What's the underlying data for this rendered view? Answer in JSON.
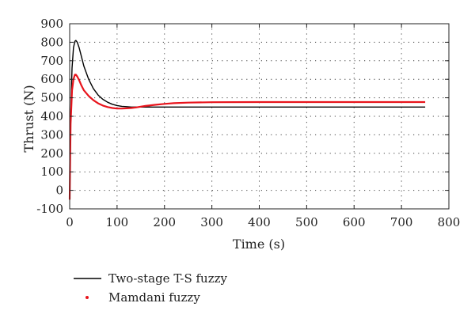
{
  "chart_data": {
    "type": "line",
    "title": "",
    "xlabel": "Time (s)",
    "ylabel": "Thrust (N)",
    "xlim": [
      0,
      800
    ],
    "ylim": [
      -100,
      900
    ],
    "xticks": [
      0,
      100,
      200,
      300,
      400,
      500,
      600,
      700,
      800
    ],
    "yticks": [
      -100,
      0,
      100,
      200,
      300,
      400,
      500,
      600,
      700,
      800,
      900
    ],
    "grid": "dotted",
    "legend_placement": "bottom-left, below plot",
    "series": [
      {
        "name": "Two-stage T-S fuzzy",
        "color": "#000000",
        "x": [
          0,
          2,
          5,
          8,
          11,
          13,
          16,
          20,
          25,
          30,
          40,
          50,
          60,
          70,
          80,
          90,
          100,
          110,
          120,
          130,
          140,
          150,
          160,
          180,
          200,
          250,
          300,
          400,
          500,
          600,
          700,
          750
        ],
        "y": [
          -50,
          400,
          660,
          770,
          805,
          810,
          800,
          770,
          720,
          670,
          600,
          550,
          515,
          492,
          476,
          465,
          458,
          454,
          452,
          450,
          450,
          450,
          450,
          450,
          450,
          450,
          450,
          450,
          450,
          450,
          450,
          450
        ]
      },
      {
        "name": "Mamdani fuzzy",
        "color": "#e8141c",
        "x": [
          0,
          2,
          5,
          8,
          11,
          13,
          16,
          20,
          25,
          30,
          40,
          50,
          60,
          70,
          80,
          90,
          100,
          110,
          120,
          130,
          140,
          150,
          160,
          180,
          200,
          220,
          250,
          300,
          400,
          500,
          600,
          700,
          750
        ],
        "y": [
          -50,
          360,
          540,
          600,
          625,
          625,
          615,
          595,
          565,
          540,
          510,
          487,
          470,
          458,
          450,
          445,
          442,
          442,
          443,
          445,
          448,
          452,
          456,
          462,
          467,
          471,
          474,
          476,
          477,
          477,
          477,
          477,
          477
        ]
      }
    ]
  }
}
